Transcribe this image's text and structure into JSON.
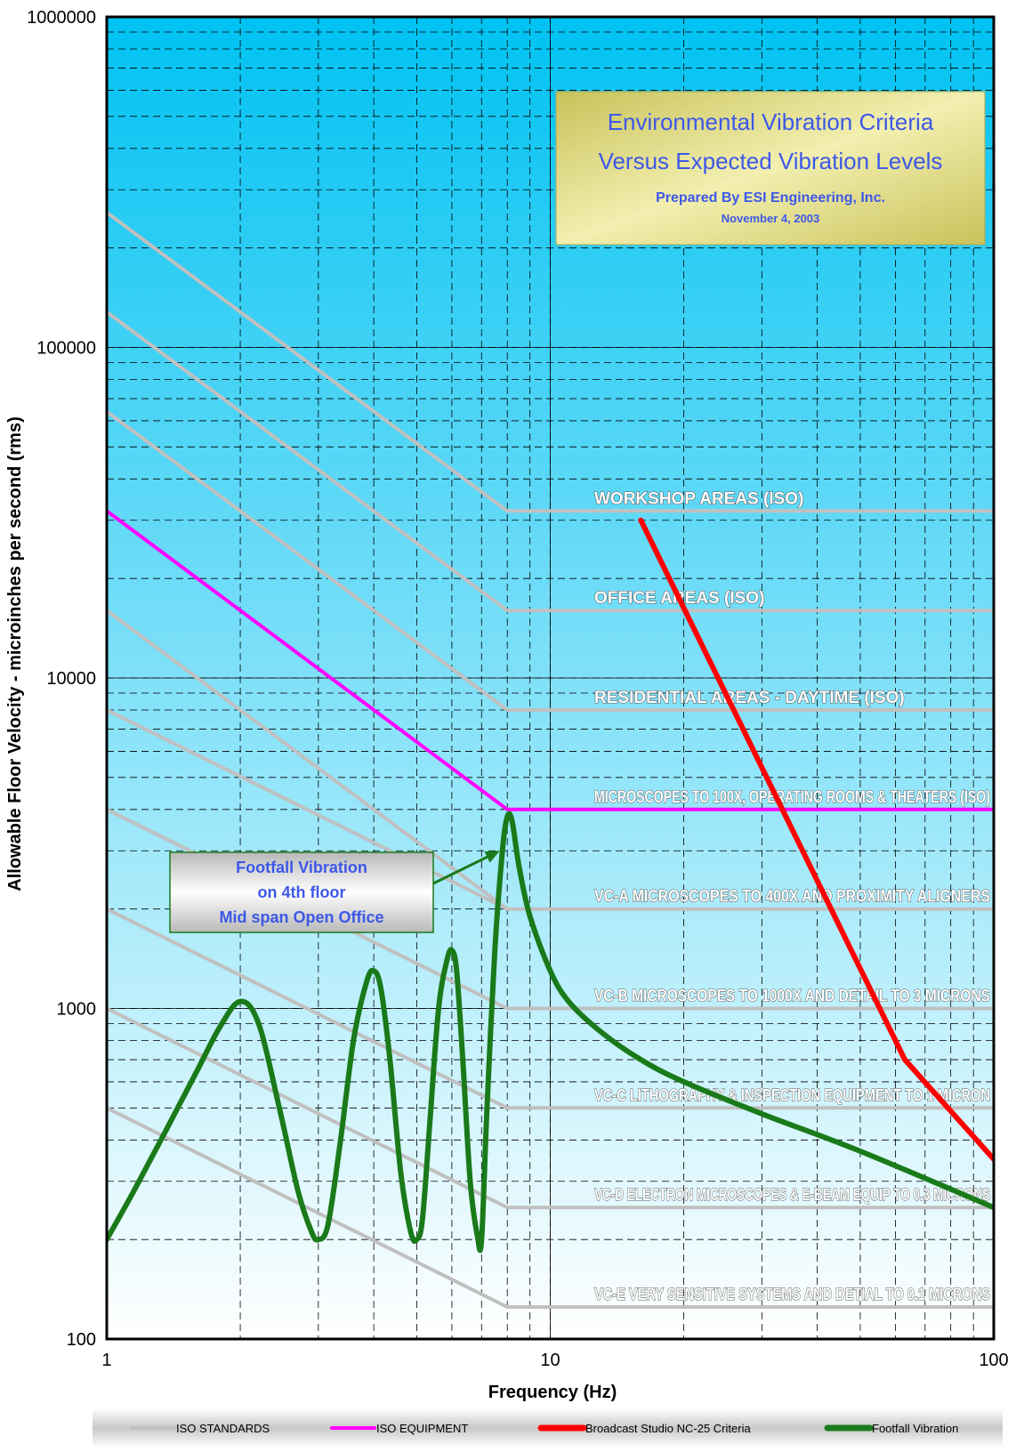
{
  "chart_data": {
    "type": "line",
    "title": "Environmental Vibration Criteria",
    "subtitle": "Versus Expected Vibration Levels",
    "prepared_by": "Prepared By ESI Engineering, Inc.",
    "date": "November 4, 2003",
    "xlabel": "Frequency (Hz)",
    "ylabel": "Allowable Floor Velocity - microinches per second (rms)",
    "x_scale": "log",
    "y_scale": "log",
    "xlim": [
      1,
      100
    ],
    "ylim": [
      100,
      1000000
    ],
    "x_ticks": [
      "1",
      "10",
      "100"
    ],
    "y_ticks": [
      "100",
      "1000",
      "10000",
      "100000",
      "1000000"
    ],
    "grid": true,
    "background": {
      "top": "#00c2f2",
      "bottom": "#ffffff"
    },
    "criteria": [
      {
        "name": "WORKSHOP AREAS (ISO)",
        "group": "ISO STANDARDS",
        "color": "#c0c0c0",
        "x": [
          1,
          8,
          100
        ],
        "y": [
          256000,
          32000,
          32000
        ]
      },
      {
        "name": "OFFICE AREAS (ISO)",
        "group": "ISO STANDARDS",
        "color": "#c0c0c0",
        "x": [
          1,
          8,
          100
        ],
        "y": [
          128000,
          16000,
          16000
        ]
      },
      {
        "name": "RESIDENTIAL AREAS - DAYTIME (ISO)",
        "group": "ISO STANDARDS",
        "color": "#c0c0c0",
        "x": [
          1,
          8,
          100
        ],
        "y": [
          64000,
          8000,
          8000
        ]
      },
      {
        "name": "MICROSCOPES TO 100X, OPERATING ROOMS & THEATERS (ISO)",
        "group": "ISO EQUIPMENT",
        "color": "#ff00ff",
        "x": [
          1,
          8,
          100
        ],
        "y": [
          32000,
          4000,
          4000
        ]
      },
      {
        "name": "",
        "group": "ISO STANDARDS",
        "color": "#c0c0c0",
        "x": [
          1,
          8
        ],
        "y": [
          16000,
          2000
        ]
      },
      {
        "name": "VC-A MICROSCOPES TO 400X  AND PROXIMITY ALIGNERS",
        "group": "ISO STANDARDS",
        "color": "#c0c0c0",
        "x": [
          1,
          8,
          100
        ],
        "y": [
          8000,
          2000,
          2000
        ]
      },
      {
        "name": "VC-B  MICROSCOPES TO 1000X  AND  DETAIL TO 3 MICRONS",
        "group": "ISO STANDARDS",
        "color": "#c0c0c0",
        "x": [
          1,
          8,
          100
        ],
        "y": [
          4000,
          1000,
          1000
        ]
      },
      {
        "name": "VC-C LITHOGRAPHY & INSPECTION EQUIPMENT TO 1 MICRON",
        "group": "ISO STANDARDS",
        "color": "#c0c0c0",
        "x": [
          1,
          8,
          100
        ],
        "y": [
          2000,
          500,
          500
        ]
      },
      {
        "name": "VC-D  ELECTRON MICROSCOPES & E-BEAM EQUIP TO 0.3 MICRONS",
        "group": "ISO STANDARDS",
        "color": "#c0c0c0",
        "x": [
          1,
          8,
          100
        ],
        "y": [
          1000,
          250,
          250
        ]
      },
      {
        "name": "VC-E  VERY SENSITIVE SYSTEMS  AND DETIAL TO 0.1 MICRONS",
        "group": "ISO STANDARDS",
        "color": "#c0c0c0",
        "x": [
          1,
          8,
          100
        ],
        "y": [
          500,
          125,
          125
        ]
      }
    ],
    "series": [
      {
        "name": "Broadcast Studio NC-25 Criteria",
        "color": "#ff0000",
        "x": [
          16,
          63,
          100
        ],
        "y": [
          30000,
          700,
          350
        ]
      },
      {
        "name": "Footfall Vibration",
        "color": "#1a7a1a",
        "x": [
          1,
          1.15,
          1.35,
          1.6,
          1.8,
          2.0,
          2.2,
          2.45,
          2.7,
          2.9,
          3.0,
          3.15,
          3.35,
          3.6,
          3.85,
          4.0,
          4.15,
          4.35,
          4.6,
          4.85,
          5.0,
          5.15,
          5.35,
          5.6,
          5.85,
          6.0,
          6.15,
          6.35,
          6.6,
          6.85,
          7.0,
          7.2,
          7.5,
          7.8,
          8.0,
          8.2,
          8.5,
          9.0,
          10,
          11,
          13,
          16,
          20,
          30,
          50,
          100
        ],
        "y": [
          200,
          280,
          420,
          650,
          880,
          1050,
          900,
          500,
          280,
          210,
          200,
          220,
          380,
          800,
          1200,
          1300,
          1150,
          700,
          320,
          210,
          200,
          230,
          450,
          1000,
          1400,
          1500,
          1300,
          700,
          300,
          205,
          200,
          500,
          1500,
          3000,
          3800,
          3700,
          2700,
          1900,
          1300,
          1050,
          850,
          700,
          600,
          480,
          370,
          250
        ]
      }
    ],
    "annotation": {
      "lines": [
        "Footfall Vibration",
        "on 4th floor",
        "Mid span Open Office"
      ],
      "points_to": {
        "x": 7.7,
        "y": 3000
      }
    },
    "legend": {
      "position": "bottom",
      "items": [
        {
          "label": "ISO STANDARDS",
          "color": "#c0c0c0"
        },
        {
          "label": "ISO EQUIPMENT",
          "color": "#ff00ff"
        },
        {
          "label": "Broadcast Studio NC-25 Criteria",
          "color": "#ff0000"
        },
        {
          "label": "Footfall Vibration",
          "color": "#1a7a1a"
        }
      ]
    }
  }
}
